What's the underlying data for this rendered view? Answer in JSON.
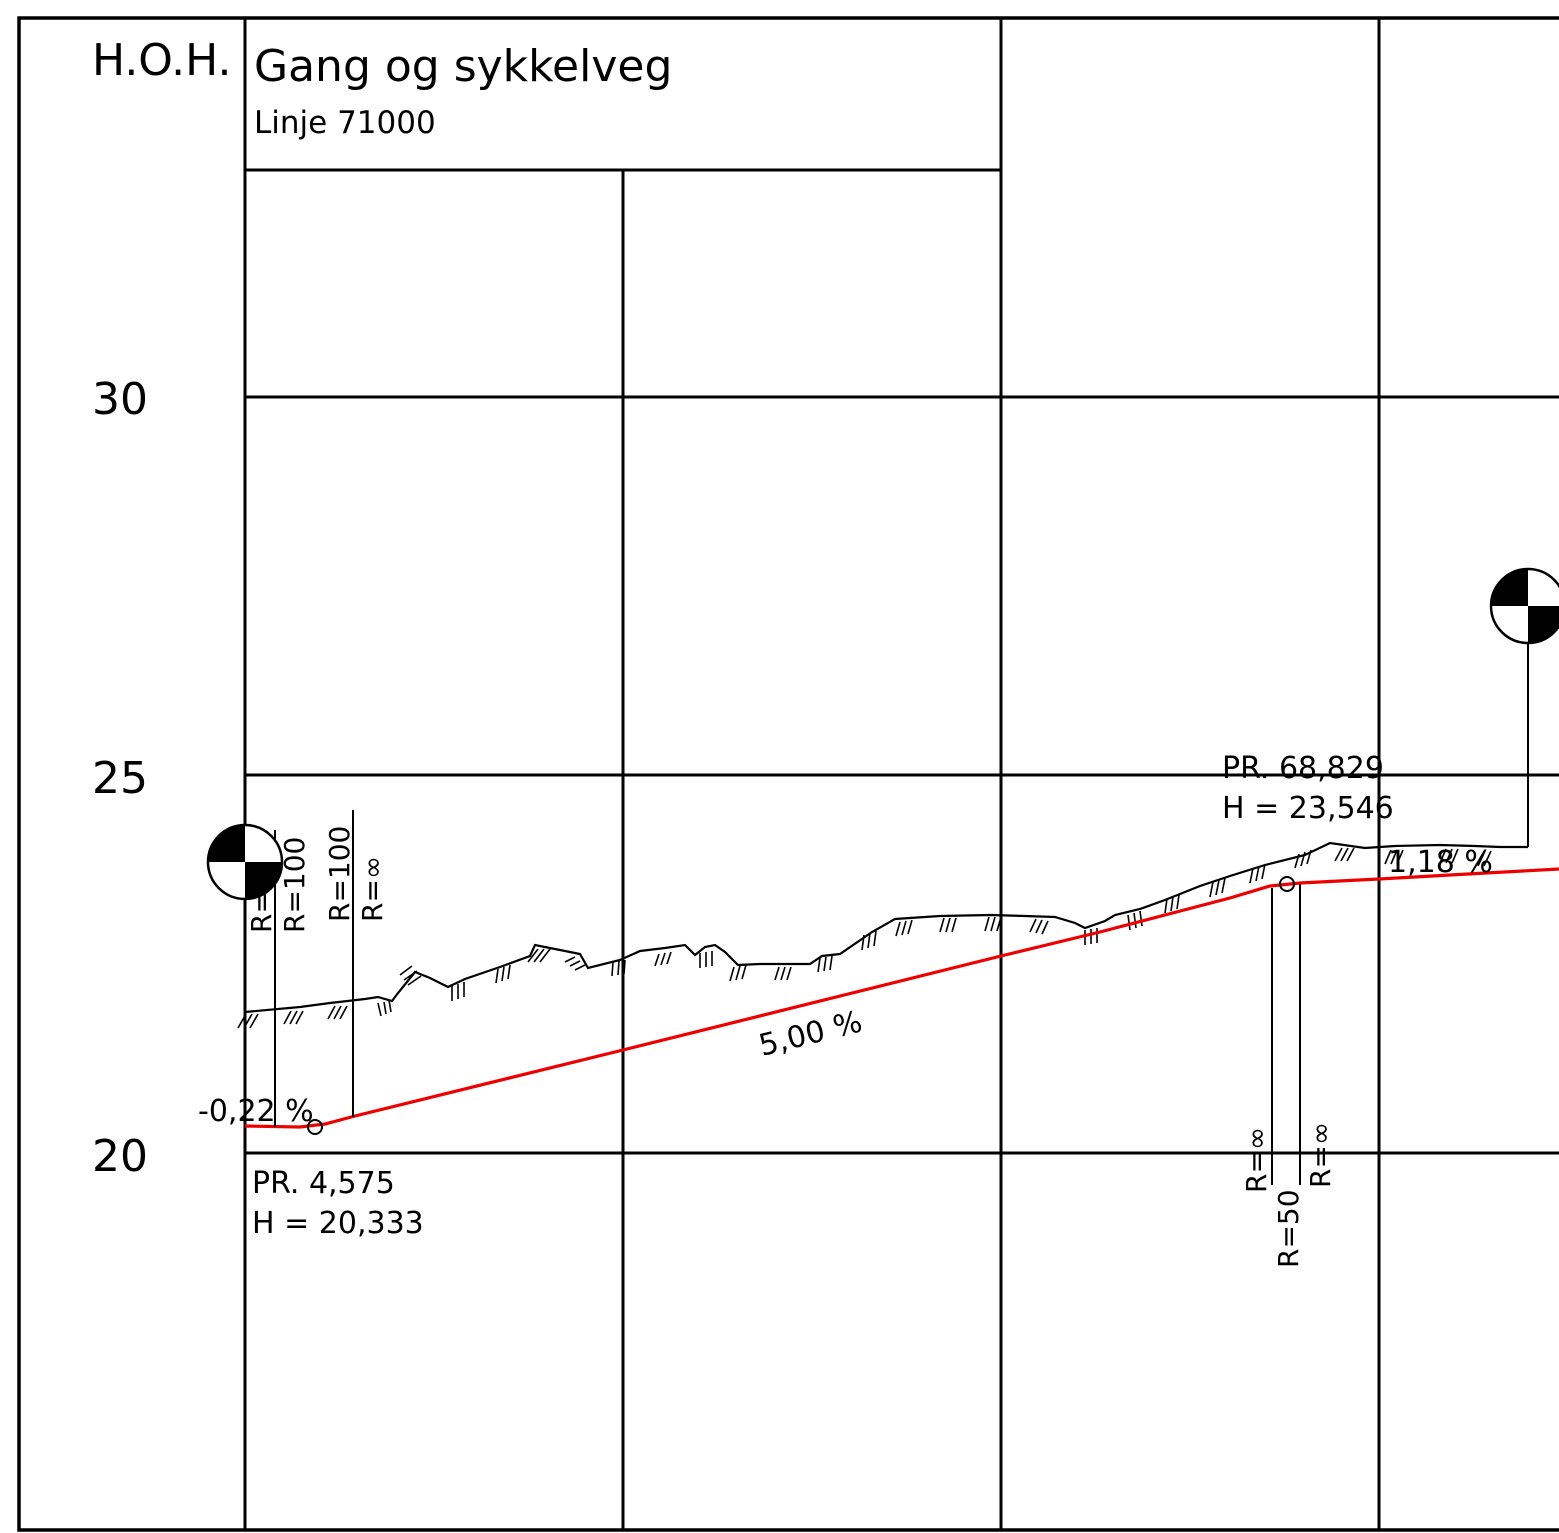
{
  "header": {
    "axis_label": "H.O.H.",
    "title": "Gang og sykkelveg",
    "subtitle": "Linje 71000"
  },
  "elevation_labels": [
    "30",
    "25",
    "20"
  ],
  "profile": {
    "slopes": {
      "start": "-0,22 %",
      "main": "5,00 %",
      "end": "1,18 %"
    },
    "points": [
      {
        "station": "PR. 4,575",
        "height": "H = 20,333"
      },
      {
        "station": "PR. 68,829",
        "height": "H = 23,546"
      }
    ],
    "radius_labels": {
      "left": [
        "R=∞",
        "R=100",
        "R=100",
        "R=∞"
      ],
      "right": [
        "R=∞",
        "R=50",
        "R=∞"
      ]
    }
  },
  "colors": {
    "road_line": "#ee0000",
    "lines": "#000000"
  },
  "icons": [
    "survey-marker-icon",
    "survey-marker-icon"
  ]
}
